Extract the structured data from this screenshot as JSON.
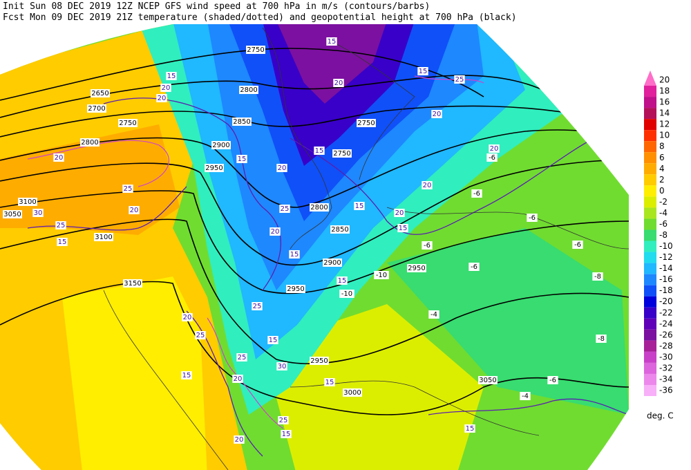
{
  "header": {
    "line1": "Init  Sun 08 DEC 2019 12Z  NCEP GFS wind speed at 700 hPa in m/s (contours/barbs)",
    "line2": "Fcst Mon 09 DEC 2019 21Z  temperature (shaded/dotted) and geopotential height at 700 hPa (black)"
  },
  "colorbar": {
    "levels": [
      20,
      18,
      16,
      14,
      12,
      10,
      8,
      6,
      4,
      2,
      0,
      -2,
      -4,
      -6,
      -8,
      -10,
      -12,
      -14,
      -16,
      -18,
      -20,
      -22,
      -24,
      -26,
      -28,
      -30,
      -32,
      -34,
      -36
    ],
    "colors": [
      "#ff6ec8",
      "#e0209c",
      "#c0108a",
      "#b4105a",
      "#e00000",
      "#ff3000",
      "#ff6600",
      "#ff9000",
      "#ffac00",
      "#ffcc00",
      "#ffee00",
      "#dcee00",
      "#aae620",
      "#70dc30",
      "#38dc70",
      "#30eebe",
      "#20dcee",
      "#20b8ff",
      "#1e88ff",
      "#1050f8",
      "#0000dc",
      "#3800c8",
      "#6000b8",
      "#7c10a0",
      "#a82098",
      "#c840c8",
      "#dc64dc",
      "#ec88ec",
      "#f8b0f8"
    ],
    "unit": "deg. C"
  },
  "map": {
    "height_labels": [
      "2750",
      "2650",
      "2700",
      "2750",
      "2800",
      "2800",
      "2850",
      "2900",
      "2950",
      "2750",
      "2750",
      "2800",
      "2850",
      "2900",
      "2950",
      "2950",
      "2950",
      "3000",
      "3050",
      "3150",
      "3100",
      "3050",
      "3100"
    ],
    "wind_labels": [
      "15",
      "20",
      "15",
      "25",
      "20",
      "20",
      "15",
      "20",
      "15",
      "20",
      "15",
      "25",
      "20",
      "15",
      "15",
      "15",
      "20",
      "25",
      "15",
      "25",
      "30",
      "20",
      "15",
      "25",
      "15",
      "20",
      "15",
      "20",
      "20",
      "15",
      "25",
      "20",
      "25",
      "15",
      "15",
      "20",
      "25",
      "30",
      "20"
    ],
    "temp_labels": [
      "-6",
      "-6",
      "-6",
      "-6",
      "-6",
      "-8",
      "-6",
      "-4",
      "-6",
      "-4",
      "-8",
      "-10",
      "-10"
    ]
  }
}
